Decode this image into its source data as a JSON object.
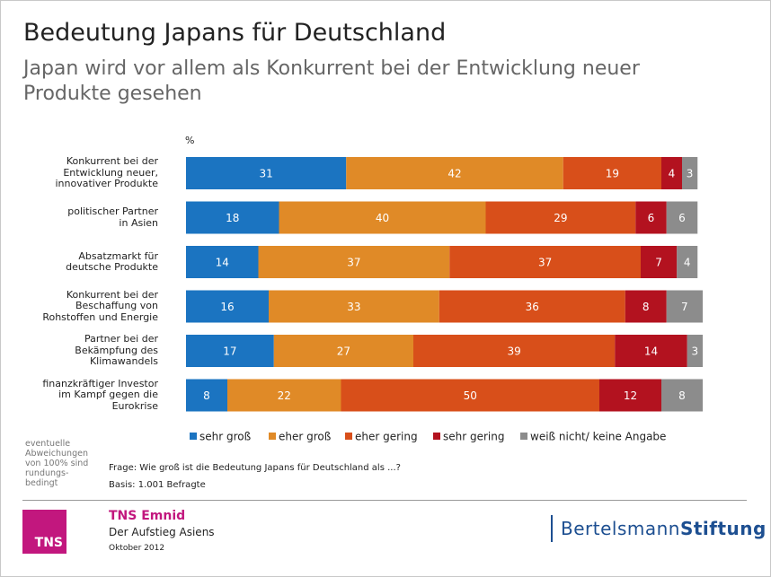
{
  "chart_data": {
    "type": "stacked-bar-horizontal",
    "title": "Bedeutung Japans für Deutschland",
    "subtitle": "Japan wird vor allem als Konkurrent bei der Entwicklung neuer\nProdukte gesehen",
    "unit_label": "%",
    "categories": [
      "Konkurrent bei der\nEntwicklung neuer,\ninnovativer Produkte",
      "politischer Partner\nin Asien",
      "Absatzmarkt für\ndeutsche Produkte",
      "Konkurrent bei der\nBeschaffung von\nRohstoffen und Energie",
      "Partner bei der\nBekämpfung des\nKlimawandels",
      "finanzkräftiger Investor\nim Kampf gegen die\nEurokrise"
    ],
    "series": [
      {
        "name": "sehr groß",
        "color": "#1b74c1",
        "values": [
          31,
          18,
          14,
          16,
          17,
          8
        ]
      },
      {
        "name": "eher groß",
        "color": "#e08a27",
        "values": [
          42,
          40,
          37,
          33,
          27,
          22
        ]
      },
      {
        "name": "eher gering",
        "color": "#d84f1a",
        "values": [
          19,
          29,
          37,
          36,
          39,
          50
        ]
      },
      {
        "name": "sehr gering",
        "color": "#b3121f",
        "values": [
          4,
          6,
          7,
          8,
          14,
          12
        ]
      },
      {
        "name": "weiß nicht/ keine Angabe",
        "color": "#8c8c8c",
        "values": [
          3,
          6,
          4,
          7,
          3,
          8
        ]
      }
    ],
    "xlim": [
      0,
      100
    ]
  },
  "footnote": "eventuelle\nAbweichungen\nvon 100% sind\nrundungs-\nbedingt",
  "question": "Frage: Wie groß ist die Bedeutung Japans für Deutschland als ...?",
  "basis": "Basis:  1.001 Befragte",
  "footer": {
    "logo": "TNS",
    "company": "TNS Emnid",
    "study": "Der Aufstieg Asiens",
    "date": "Oktober 2012",
    "brand_regular": "Bertelsmann",
    "brand_bold": "Stiftung"
  }
}
